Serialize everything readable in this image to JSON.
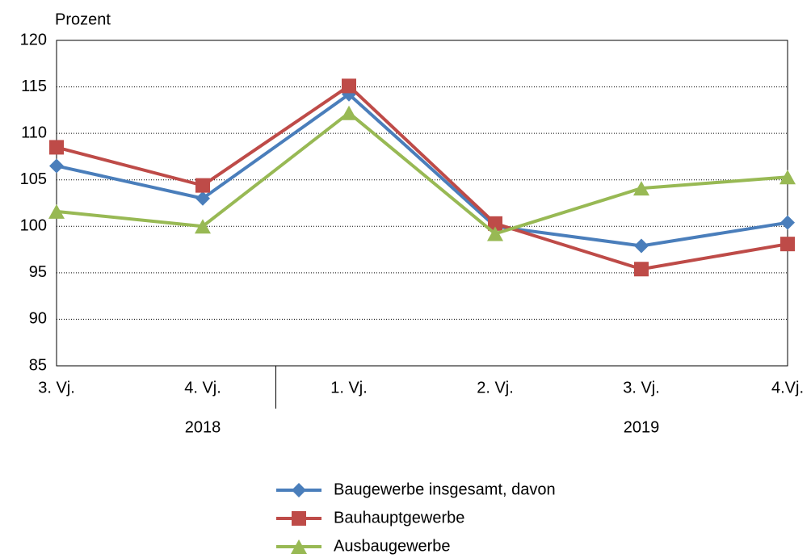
{
  "chart_data": {
    "type": "line",
    "y_axis_label": "Prozent",
    "categories": [
      "3. Vj.",
      "4. Vj.",
      "1. Vj.",
      "2. Vj.",
      "3. Vj.",
      "4.Vj."
    ],
    "x_groups": [
      {
        "label": "2018",
        "size": 2
      },
      {
        "label": "2019",
        "size": 4
      }
    ],
    "series": [
      {
        "name": "Baugewerbe insgesamt, davon",
        "color": "#4a7ebb",
        "marker": "diamond",
        "values": [
          106.5,
          103,
          114.2,
          100,
          97.9,
          100.4
        ]
      },
      {
        "name": "Bauhauptgewerbe",
        "color": "#be4b48",
        "marker": "square",
        "values": [
          108.5,
          104.4,
          115.1,
          100.3,
          95.4,
          98.1
        ]
      },
      {
        "name": "Ausbaugewerbe",
        "color": "#98b954",
        "marker": "triangle",
        "values": [
          101.6,
          100,
          112.2,
          99.2,
          104.1,
          105.3
        ]
      }
    ],
    "ylim": [
      85,
      120
    ],
    "yticks": [
      85,
      90,
      95,
      100,
      105,
      110,
      115,
      120
    ],
    "grid": true,
    "legend": "bottom"
  }
}
